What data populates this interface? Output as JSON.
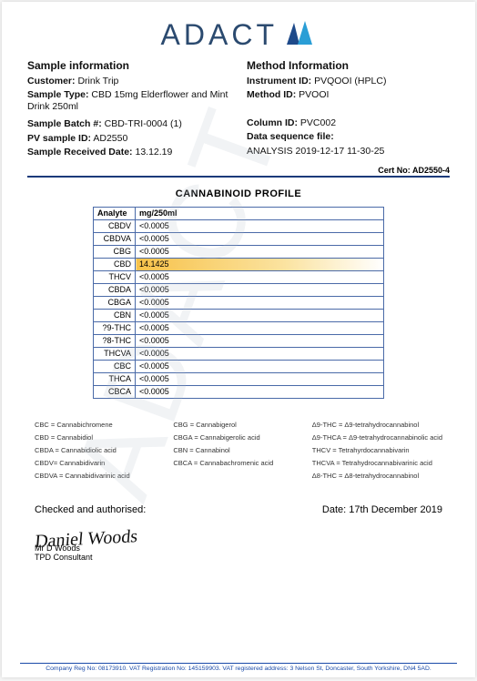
{
  "logo": {
    "text": "ADACT"
  },
  "sample_info": {
    "heading": "Sample information",
    "customer_label": "Customer:",
    "customer": "Drink Trip",
    "sample_type_label": "Sample Type:",
    "sample_type": "CBD 15mg Elderflower and Mint Drink 250ml",
    "batch_label": "Sample Batch #:",
    "batch": "CBD-TRI-0004 (1)",
    "pv_label": "PV sample ID:",
    "pv": "AD2550",
    "recv_label": "Sample Received Date:",
    "recv": "13.12.19"
  },
  "method_info": {
    "heading": "Method Information",
    "instrument_label": "Instrument ID:",
    "instrument": "PVQOOI (HPLC)",
    "method_label": "Method ID:",
    "method": "PVOOI",
    "column_label": "Column ID:",
    "column": "PVC002",
    "seq_label": "Data sequence file:",
    "seq": "ANALYSIS 2019-12-17 11-30-25"
  },
  "cert": {
    "label": "Cert No:",
    "value": "AD2550-4"
  },
  "profile": {
    "title": "CANNABINOID  PROFILE",
    "columns": [
      "Analyte",
      "mg/250ml"
    ],
    "rows": [
      {
        "analyte": "CBDV",
        "value": "<0.0005",
        "highlight": false
      },
      {
        "analyte": "CBDVA",
        "value": "<0.0005",
        "highlight": false
      },
      {
        "analyte": "CBG",
        "value": "<0.0005",
        "highlight": false
      },
      {
        "analyte": "CBD",
        "value": "14.1425",
        "highlight": true
      },
      {
        "analyte": "THCV",
        "value": "<0.0005",
        "highlight": false
      },
      {
        "analyte": "CBDA",
        "value": "<0.0005",
        "highlight": false
      },
      {
        "analyte": "CBGA",
        "value": "<0.0005",
        "highlight": false
      },
      {
        "analyte": "CBN",
        "value": "<0.0005",
        "highlight": false
      },
      {
        "analyte": "?9-THC",
        "value": "<0.0005",
        "highlight": false
      },
      {
        "analyte": "?8-THC",
        "value": "<0.0005",
        "highlight": false
      },
      {
        "analyte": "THCVA",
        "value": "<0.0005",
        "highlight": false
      },
      {
        "analyte": "CBC",
        "value": "<0.0005",
        "highlight": false
      },
      {
        "analyte": "THCA",
        "value": "<0.0005",
        "highlight": false
      },
      {
        "analyte": "CBCA",
        "value": "<0.0005",
        "highlight": false
      }
    ],
    "highlight_gradient": [
      "#f7c24a",
      "#fbe3a0",
      "#ffffff"
    ],
    "border_color": "#4a6aa8"
  },
  "abbrev": {
    "col1": [
      "CBC = Cannabichromene",
      "CBD = Cannabidiol",
      "CBDA = Cannabidiolic acid",
      "CBDV= Cannabidivarin",
      "CBDVA = Cannabidivarinic acid"
    ],
    "col2": [
      "CBG = Cannabigerol",
      "CBGA = Cannabigerolic acid",
      "CBN = Cannabinol",
      "CBCA = Cannabachromenic acid"
    ],
    "col3": [
      "Δ9-THC = Δ9-tetrahydrocannabinol",
      "Δ9-THCA = Δ9-tetrahydrocannabinolic acid",
      "THCV = Tetrahyrdocannabivarin",
      "THCVA = Tetrahydrocannabivarinic acid",
      "Δ8-THC = Δ8-tetrahydrocannabinol"
    ]
  },
  "signoff": {
    "checked_label": "Checked and authorised:",
    "date_label": "Date:",
    "date": "17th December 2019",
    "signature_text": "Daniel Woods",
    "name": "Mr D Woods",
    "title": "TPD Consultant"
  },
  "footer": "Company Reg No: 08173910. VAT Registration No: 145159903. VAT registered address: 3 Nelson St, Doncaster, South Yorkshire, DN4 5AD."
}
